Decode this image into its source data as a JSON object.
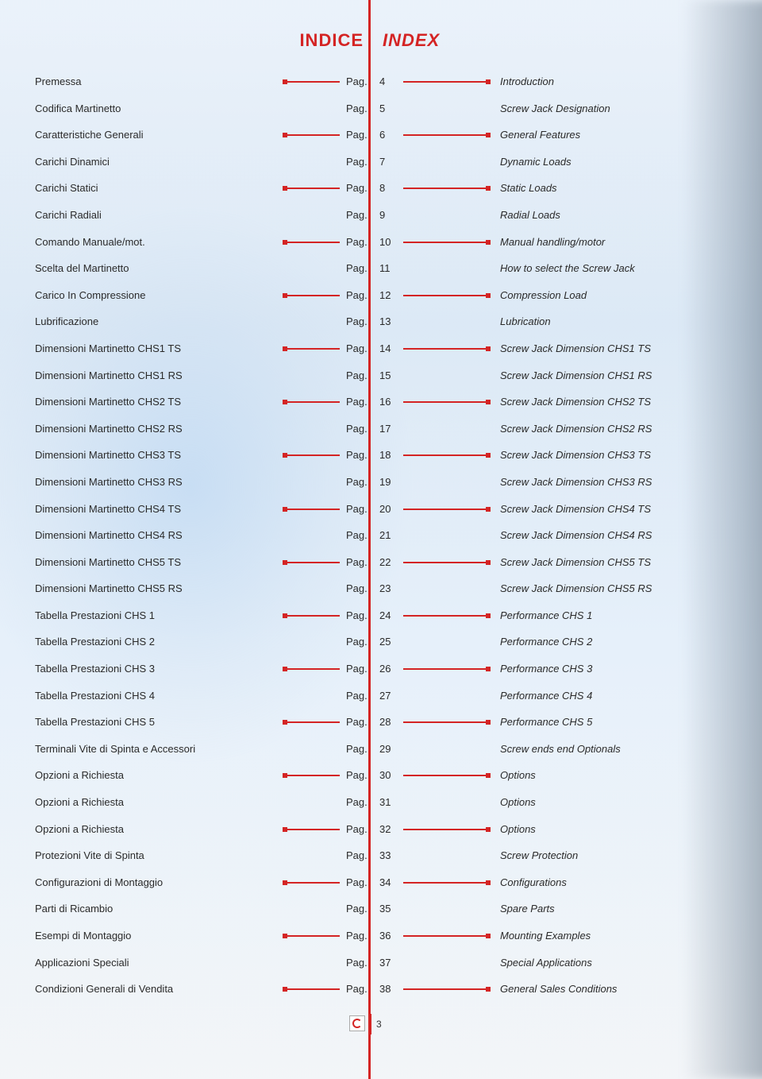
{
  "page": {
    "header_left": "INDICE",
    "header_right": "INDEX",
    "footer_page": "3"
  },
  "colors": {
    "accent": "#d42424",
    "text": "#2a2a2a",
    "bg_top": "#ebf2fa",
    "bg_bottom": "#f4f6f8"
  },
  "toc": [
    {
      "it": "Premessa",
      "page_prefix": "Pag.",
      "page": "4",
      "en": "Introduction",
      "leader": true
    },
    {
      "it": "Codifica Martinetto",
      "page_prefix": "Pag.",
      "page": "5",
      "en": "Screw Jack Designation",
      "leader": false
    },
    {
      "it": "Caratteristiche Generali",
      "page_prefix": "Pag.",
      "page": "6",
      "en": "General Features",
      "leader": true
    },
    {
      "it": "Carichi Dinamici",
      "page_prefix": "Pag.",
      "page": "7",
      "en": "Dynamic Loads",
      "leader": false
    },
    {
      "it": "Carichi Statici",
      "page_prefix": "Pag.",
      "page": "8",
      "en": "Static Loads",
      "leader": true
    },
    {
      "it": "Carichi Radiali",
      "page_prefix": "Pag.",
      "page": "9",
      "en": "Radial Loads",
      "leader": false
    },
    {
      "it": "Comando Manuale/mot.",
      "page_prefix": "Pag.",
      "page": "10",
      "en": "Manual handling/motor",
      "leader": true
    },
    {
      "it": "Scelta del Martinetto",
      "page_prefix": "Pag.",
      "page": "11",
      "en": "How to select the Screw Jack",
      "leader": false
    },
    {
      "it": "Carico In Compressione",
      "page_prefix": "Pag.",
      "page": "12",
      "en": "Compression Load",
      "leader": true
    },
    {
      "it": "Lubrificazione",
      "page_prefix": "Pag.",
      "page": "13",
      "en": "Lubrication",
      "leader": false
    },
    {
      "it": "Dimensioni Martinetto CHS1 TS",
      "page_prefix": "Pag.",
      "page": "14",
      "en": "Screw Jack Dimension CHS1 TS",
      "leader": true
    },
    {
      "it": "Dimensioni Martinetto CHS1 RS",
      "page_prefix": "Pag.",
      "page": "15",
      "en": "Screw Jack Dimension CHS1 RS",
      "leader": false
    },
    {
      "it": "Dimensioni Martinetto CHS2 TS",
      "page_prefix": "Pag.",
      "page": "16",
      "en": "Screw Jack Dimension CHS2 TS",
      "leader": true
    },
    {
      "it": "Dimensioni Martinetto CHS2 RS",
      "page_prefix": "Pag.",
      "page": "17",
      "en": "Screw Jack Dimension CHS2 RS",
      "leader": false
    },
    {
      "it": "Dimensioni Martinetto CHS3 TS",
      "page_prefix": "Pag.",
      "page": "18",
      "en": "Screw Jack Dimension CHS3 TS",
      "leader": true
    },
    {
      "it": "Dimensioni Martinetto CHS3 RS",
      "page_prefix": "Pag.",
      "page": "19",
      "en": "Screw Jack Dimension CHS3 RS",
      "leader": false
    },
    {
      "it": "Dimensioni Martinetto CHS4 TS",
      "page_prefix": "Pag.",
      "page": "20",
      "en": "Screw Jack Dimension CHS4 TS",
      "leader": true
    },
    {
      "it": "Dimensioni Martinetto CHS4 RS",
      "page_prefix": "Pag.",
      "page": "21",
      "en": "Screw Jack Dimension CHS4 RS",
      "leader": false
    },
    {
      "it": "Dimensioni Martinetto CHS5 TS",
      "page_prefix": "Pag.",
      "page": "22",
      "en": "Screw Jack Dimension CHS5 TS",
      "leader": true
    },
    {
      "it": "Dimensioni Martinetto CHS5 RS",
      "page_prefix": "Pag.",
      "page": "23",
      "en": "Screw Jack Dimension CHS5 RS",
      "leader": false
    },
    {
      "it": "Tabella Prestazioni CHS 1",
      "page_prefix": "Pag.",
      "page": "24",
      "en": "Performance CHS 1",
      "leader": true
    },
    {
      "it": "Tabella Prestazioni CHS 2",
      "page_prefix": "Pag.",
      "page": "25",
      "en": "Performance CHS 2",
      "leader": false
    },
    {
      "it": "Tabella Prestazioni CHS 3",
      "page_prefix": "Pag.",
      "page": "26",
      "en": " Performance CHS 3",
      "leader": true
    },
    {
      "it": "Tabella Prestazioni CHS 4",
      "page_prefix": "Pag.",
      "page": "27",
      "en": "Performance CHS 4",
      "leader": false
    },
    {
      "it": "Tabella Prestazioni CHS 5",
      "page_prefix": "Pag.",
      "page": "28",
      "en": "Performance CHS 5",
      "leader": true
    },
    {
      "it": "Terminali Vite di Spinta  e Accessori",
      "page_prefix": "Pag.",
      "page": "29",
      "en": "Screw ends end Optionals",
      "leader": false
    },
    {
      "it": "Opzioni a Richiesta",
      "page_prefix": "Pag.",
      "page": "30",
      "en": "Options",
      "leader": true
    },
    {
      "it": "Opzioni a Richiesta",
      "page_prefix": "Pag.",
      "page": "31",
      "en": "Options",
      "leader": false
    },
    {
      "it": "Opzioni a Richiesta",
      "page_prefix": "Pag.",
      "page": "32",
      "en": "Options",
      "leader": true
    },
    {
      "it": "Protezioni Vite di Spinta",
      "page_prefix": "Pag.",
      "page": "33",
      "en": "Screw Protection",
      "leader": false
    },
    {
      "it": "Configurazioni di Montaggio",
      "page_prefix": "Pag.",
      "page": "34",
      "en": "Configurations",
      "leader": true
    },
    {
      "it": "Parti di Ricambio",
      "page_prefix": "Pag.",
      "page": "35",
      "en": "Spare Parts",
      "leader": false
    },
    {
      "it": "Esempi di Montaggio",
      "page_prefix": "Pag.",
      "page": "36",
      "en": "Mounting Examples",
      "leader": true
    },
    {
      "it": "Applicazioni Speciali",
      "page_prefix": "Pag.",
      "page": "37",
      "en": "Special Applications",
      "leader": false
    },
    {
      "it": "Condizioni Generali di Vendita",
      "page_prefix": "Pag.",
      "page": "38",
      "en": "General Sales Conditions",
      "leader": true
    }
  ]
}
